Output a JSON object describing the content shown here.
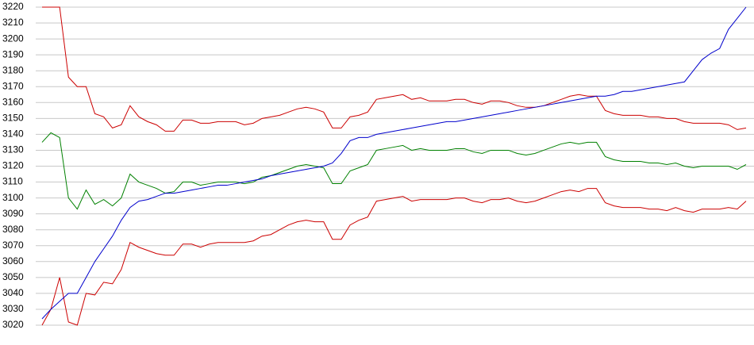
{
  "chart_data": {
    "type": "line",
    "categories": [
      null,
      null,
      null,
      null,
      null,
      null,
      null,
      null,
      null,
      null,
      null,
      null,
      null,
      null,
      null,
      null,
      null,
      null,
      null,
      null,
      null,
      null,
      null,
      null,
      null,
      null,
      null,
      null,
      null,
      null,
      null,
      null,
      null,
      null,
      null,
      null,
      null,
      null,
      null,
      null,
      null,
      null,
      null,
      null,
      null,
      null,
      null,
      null,
      null,
      null,
      null,
      null,
      null,
      null,
      null,
      null,
      null,
      null,
      null,
      null,
      null,
      null,
      null,
      null,
      null,
      null,
      null,
      null,
      null,
      null,
      null,
      null,
      null,
      null,
      null,
      null,
      null,
      null,
      null,
      null,
      null
    ],
    "ylim": [
      3020,
      3220
    ],
    "yticks": [
      3020,
      3030,
      3040,
      3050,
      3060,
      3070,
      3080,
      3090,
      3100,
      3110,
      3120,
      3130,
      3140,
      3150,
      3160,
      3170,
      3180,
      3190,
      3200,
      3210,
      3220
    ],
    "grid": true,
    "series": [
      {
        "color": "#cc0000",
        "values": [
          3220,
          3220,
          3220,
          3176,
          3170,
          3170,
          3153,
          3151,
          3144,
          3146,
          3158,
          3151,
          3148,
          3146,
          3142,
          3142,
          3149,
          3149,
          3147,
          3147,
          3148,
          3148,
          3148,
          3146,
          3147,
          3150,
          3151,
          3152,
          3154,
          3156,
          3157,
          3156,
          3154,
          3144,
          3144,
          3151,
          3152,
          3154,
          3162,
          3163,
          3164,
          3165,
          3162,
          3163,
          3161,
          3161,
          3161,
          3162,
          3162,
          3160,
          3159,
          3161,
          3161,
          3160,
          3158,
          3157,
          3157,
          3158,
          3160,
          3162,
          3164,
          3165,
          3164,
          3164,
          3155,
          3153,
          3152,
          3152,
          3152,
          3151,
          3151,
          3150,
          3150,
          3148,
          3147,
          3147,
          3147,
          3147,
          3146,
          3143,
          3144
        ]
      },
      {
        "color": "#008000",
        "values": [
          3135,
          3141,
          3138,
          3100,
          3093,
          3105,
          3096,
          3099,
          3095,
          3100,
          3115,
          3110,
          3108,
          3106,
          3103,
          3104,
          3110,
          3110,
          3108,
          3109,
          3110,
          3110,
          3110,
          3109,
          3110,
          3113,
          3114,
          3116,
          3118,
          3120,
          3121,
          3120,
          3119,
          3109,
          3109,
          3117,
          3119,
          3121,
          3130,
          3131,
          3132,
          3133,
          3130,
          3131,
          3130,
          3130,
          3130,
          3131,
          3131,
          3129,
          3128,
          3130,
          3130,
          3130,
          3128,
          3127,
          3128,
          3130,
          3132,
          3134,
          3135,
          3134,
          3135,
          3135,
          3126,
          3124,
          3123,
          3123,
          3123,
          3122,
          3122,
          3121,
          3122,
          3120,
          3119,
          3120,
          3120,
          3120,
          3120,
          3118,
          3121
        ]
      },
      {
        "color": "#cc0000",
        "values": [
          3020,
          3030,
          3050,
          3022,
          3020,
          3040,
          3039,
          3047,
          3046,
          3055,
          3072,
          3069,
          3067,
          3065,
          3064,
          3064,
          3071,
          3071,
          3069,
          3071,
          3072,
          3072,
          3072,
          3072,
          3073,
          3076,
          3077,
          3080,
          3083,
          3085,
          3086,
          3085,
          3085,
          3074,
          3074,
          3083,
          3086,
          3088,
          3098,
          3099,
          3100,
          3101,
          3098,
          3099,
          3099,
          3099,
          3099,
          3100,
          3100,
          3098,
          3097,
          3099,
          3099,
          3100,
          3098,
          3097,
          3098,
          3100,
          3102,
          3104,
          3105,
          3104,
          3106,
          3106,
          3097,
          3095,
          3094,
          3094,
          3094,
          3093,
          3093,
          3092,
          3094,
          3092,
          3091,
          3093,
          3093,
          3093,
          3094,
          3093,
          3098
        ]
      },
      {
        "color": "#0000cc",
        "values": [
          3024,
          3030,
          3035,
          3040,
          3040,
          3050,
          3060,
          3068,
          3076,
          3086,
          3094,
          3098,
          3099,
          3101,
          3103,
          3103,
          3104,
          3105,
          3106,
          3107,
          3108,
          3108,
          3109,
          3110,
          3111,
          3112,
          3114,
          3115,
          3116,
          3117,
          3118,
          3119,
          3120,
          3122,
          3128,
          3136,
          3138,
          3138,
          3140,
          3141,
          3142,
          3143,
          3144,
          3145,
          3146,
          3147,
          3148,
          3148,
          3149,
          3150,
          3151,
          3152,
          3153,
          3154,
          3155,
          3156,
          3157,
          3158,
          3159,
          3160,
          3161,
          3162,
          3163,
          3164,
          3164,
          3165,
          3167,
          3167,
          3168,
          3169,
          3170,
          3171,
          3172,
          3173,
          3180,
          3187,
          3191,
          3194,
          3206,
          3213,
          3220
        ]
      }
    ]
  }
}
